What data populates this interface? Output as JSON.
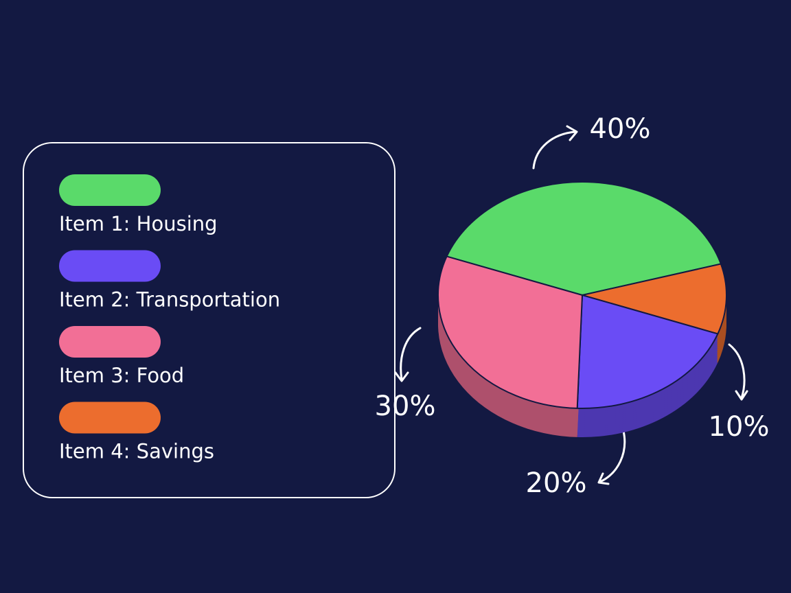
{
  "chart_data": {
    "type": "pie",
    "categories": [
      "Item 1: Housing",
      "Item 2: Transportation",
      "Item 3: Food",
      "Item 4: Savings"
    ],
    "values": [
      40,
      20,
      30,
      10
    ],
    "value_labels": [
      "40%",
      "20%",
      "30%",
      "10%"
    ],
    "colors": [
      "#5ada6a",
      "#6a4cf5",
      "#f26f96",
      "#ec6d2e"
    ]
  }
}
